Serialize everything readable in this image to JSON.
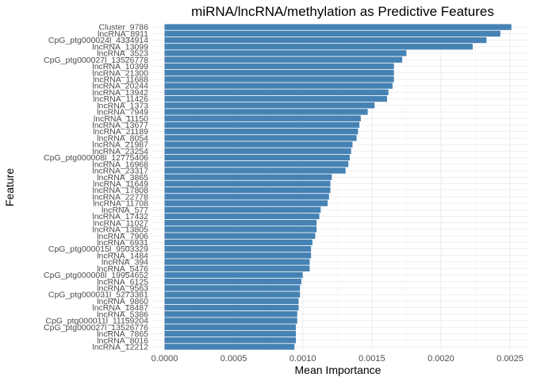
{
  "chart_data": {
    "type": "bar",
    "orientation": "horizontal",
    "title": "miRNA/lncRNA/methylation as Predictive Features",
    "xlabel": "Mean Importance",
    "ylabel": "Feature",
    "xlim": [
      0,
      0.0026
    ],
    "x_ticks": [
      "0.0000",
      "0.0005",
      "0.0010",
      "0.0015",
      "0.0020",
      "0.0025"
    ],
    "x_tick_values": [
      0,
      0.0005,
      0.001,
      0.0015,
      0.002,
      0.0025
    ],
    "grid": true,
    "legend": "none",
    "bar_color": "#4682B4",
    "categories": [
      "Cluster_9786",
      "lncRNA_8911",
      "CpG_ptg000024l_4334914",
      "lncRNA_13099",
      "lncRNA_3523",
      "CpG_ptg000027l_13526778",
      "lncRNA_10399",
      "lncRNA_21300",
      "lncRNA_11688",
      "lncRNA_20244",
      "lncRNA_13942",
      "lncRNA_11426",
      "lncRNA_1373",
      "lncRNA_7949",
      "lncRNA_11150",
      "lncRNA_13677",
      "lncRNA_21189",
      "lncRNA_8054",
      "lncRNA_21987",
      "lncRNA_23254",
      "CpG_ptg000008l_12775406",
      "lncRNA_16968",
      "lncRNA_23317",
      "lncRNA_3865",
      "lncRNA_11649",
      "lncRNA_17808",
      "lncRNA_22778",
      "lncRNA_11708",
      "lncRNA_577",
      "lncRNA_17432",
      "lncRNA_11027",
      "lncRNA_13805",
      "lncRNA_7906",
      "lncRNA_6931",
      "CpG_ptg000015l_9503329",
      "lncRNA_1484",
      "lncRNA_394",
      "lncRNA_5476",
      "CpG_ptg000008l_19954652",
      "lncRNA_6125",
      "lncRNA_9563",
      "CpG_ptg000031l_5273381",
      "lncRNA_9860",
      "lncRNA_18487",
      "lncRNA_5386",
      "CpG_ptg000011l_11159204",
      "CpG_ptg000027l_13526776",
      "lncRNA_7865",
      "lncRNA_8016",
      "lncRNA_12212"
    ],
    "values": [
      0.00251,
      0.00243,
      0.00233,
      0.00223,
      0.00175,
      0.00172,
      0.00166,
      0.00166,
      0.00166,
      0.00165,
      0.00162,
      0.00161,
      0.00152,
      0.00147,
      0.00142,
      0.00141,
      0.0014,
      0.00139,
      0.00136,
      0.00135,
      0.00134,
      0.00133,
      0.00131,
      0.00121,
      0.0012,
      0.0012,
      0.00119,
      0.00118,
      0.00113,
      0.00112,
      0.0011,
      0.0011,
      0.00109,
      0.00107,
      0.00106,
      0.00106,
      0.00105,
      0.00105,
      0.001,
      0.00099,
      0.00098,
      0.00098,
      0.00097,
      0.00097,
      0.00096,
      0.00096,
      0.00095,
      0.00095,
      0.00095,
      0.00094
    ]
  }
}
